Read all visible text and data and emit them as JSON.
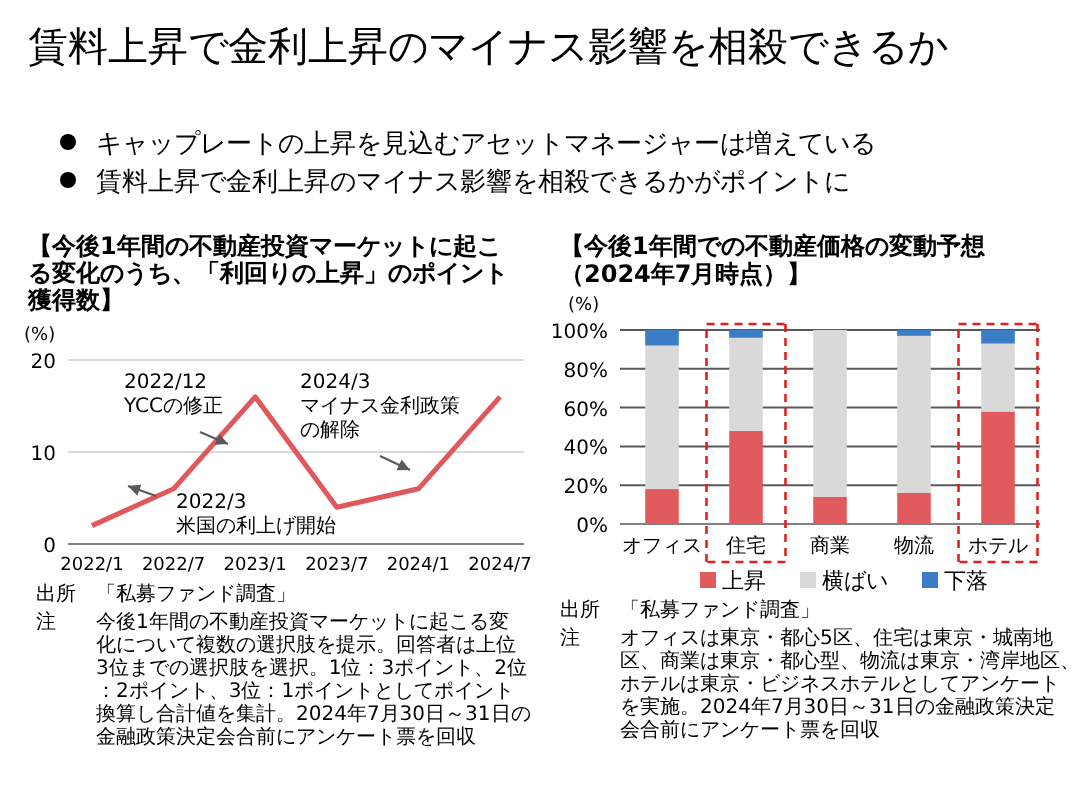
{
  "chart_data": [
    {
      "type": "other",
      "title": "賃料上昇で金利上昇のマイナス影響を相殺できるか",
      "annotations": [
        "キャップレートの上昇を見込むアセットマネージャーは増えている",
        "賃料上昇で金利上昇のマイナス影響を相殺できるかがポイントに"
      ]
    },
    {
      "type": "line",
      "title": "【今後1年間の不動産投資マーケットに起こる変化のうち、「利回りの上昇」のポイント獲得数】",
      "ylabel": "(%)",
      "categories": [
        "2022/1",
        "2022/7",
        "2023/1",
        "2023/7",
        "2024/1",
        "2024/7"
      ],
      "series": [
        {
          "color": "#e0585c",
          "values": [
            2,
            6,
            16,
            4,
            6,
            16
          ]
        }
      ],
      "ylim": [
        0,
        20
      ],
      "yticks": [
        0,
        10,
        20
      ],
      "grid": "y",
      "marker": "none",
      "line_style": "solid",
      "annotations": [
        "2022/12\nYCCの修正",
        "2024/3\nマイナス金利政策の解除",
        "2022/3\n米国の利上げ開始",
        "出所　「私募ファンド調査」",
        "注　今後1年間の不動産投資マーケットに起こる変化について複数の選択肢を提示。回答者は上位3位までの選択肢を選択。1位：3ポイント、2位：2ポイント、3位：1ポイントとしてポイント換算し合計値を集計。2024年7月30日～31日の金融政策決定会合前にアンケート票を回収"
      ]
    },
    {
      "type": "bar",
      "stacked": true,
      "title": "【今後1年間での不動産価格の変動予想（2024年7月時点）】",
      "ylabel": "(%)",
      "categories": [
        "オフィス",
        "住宅",
        "商業",
        "物流",
        "ホテル"
      ],
      "series": [
        {
          "name": "上昇",
          "color": "#e05a5e",
          "values": [
            18,
            48,
            14,
            16,
            58
          ]
        },
        {
          "name": "横ばい",
          "color": "#d9d9d9",
          "values": [
            74,
            48,
            86,
            81,
            35
          ]
        },
        {
          "name": "下落",
          "color": "#3b7dc4",
          "values": [
            8,
            4,
            0,
            3,
            7
          ]
        }
      ],
      "ylim": [
        0,
        100
      ],
      "yticks": [
        {
          "value": 0,
          "label": "0%"
        },
        {
          "value": 20,
          "label": "20%"
        },
        {
          "value": 40,
          "label": "40%"
        },
        {
          "value": 60,
          "label": "60%"
        },
        {
          "value": 80,
          "label": "80%"
        },
        {
          "value": 100,
          "label": "100%"
        }
      ],
      "grid": "y",
      "legend": "bottom",
      "annotations": [
        "出所　「私募ファンド調査」",
        "注　オフィスは東京・都心5区、住宅は東京・城南地区、商業は東京・都心型、物流は東京・湾岸地区、ホテルは東京・ビジネスホテルとしてアンケートを実施。2024年7月30日～31日の金融政策決定会合前にアンケート票を回収"
      ]
    }
  ]
}
